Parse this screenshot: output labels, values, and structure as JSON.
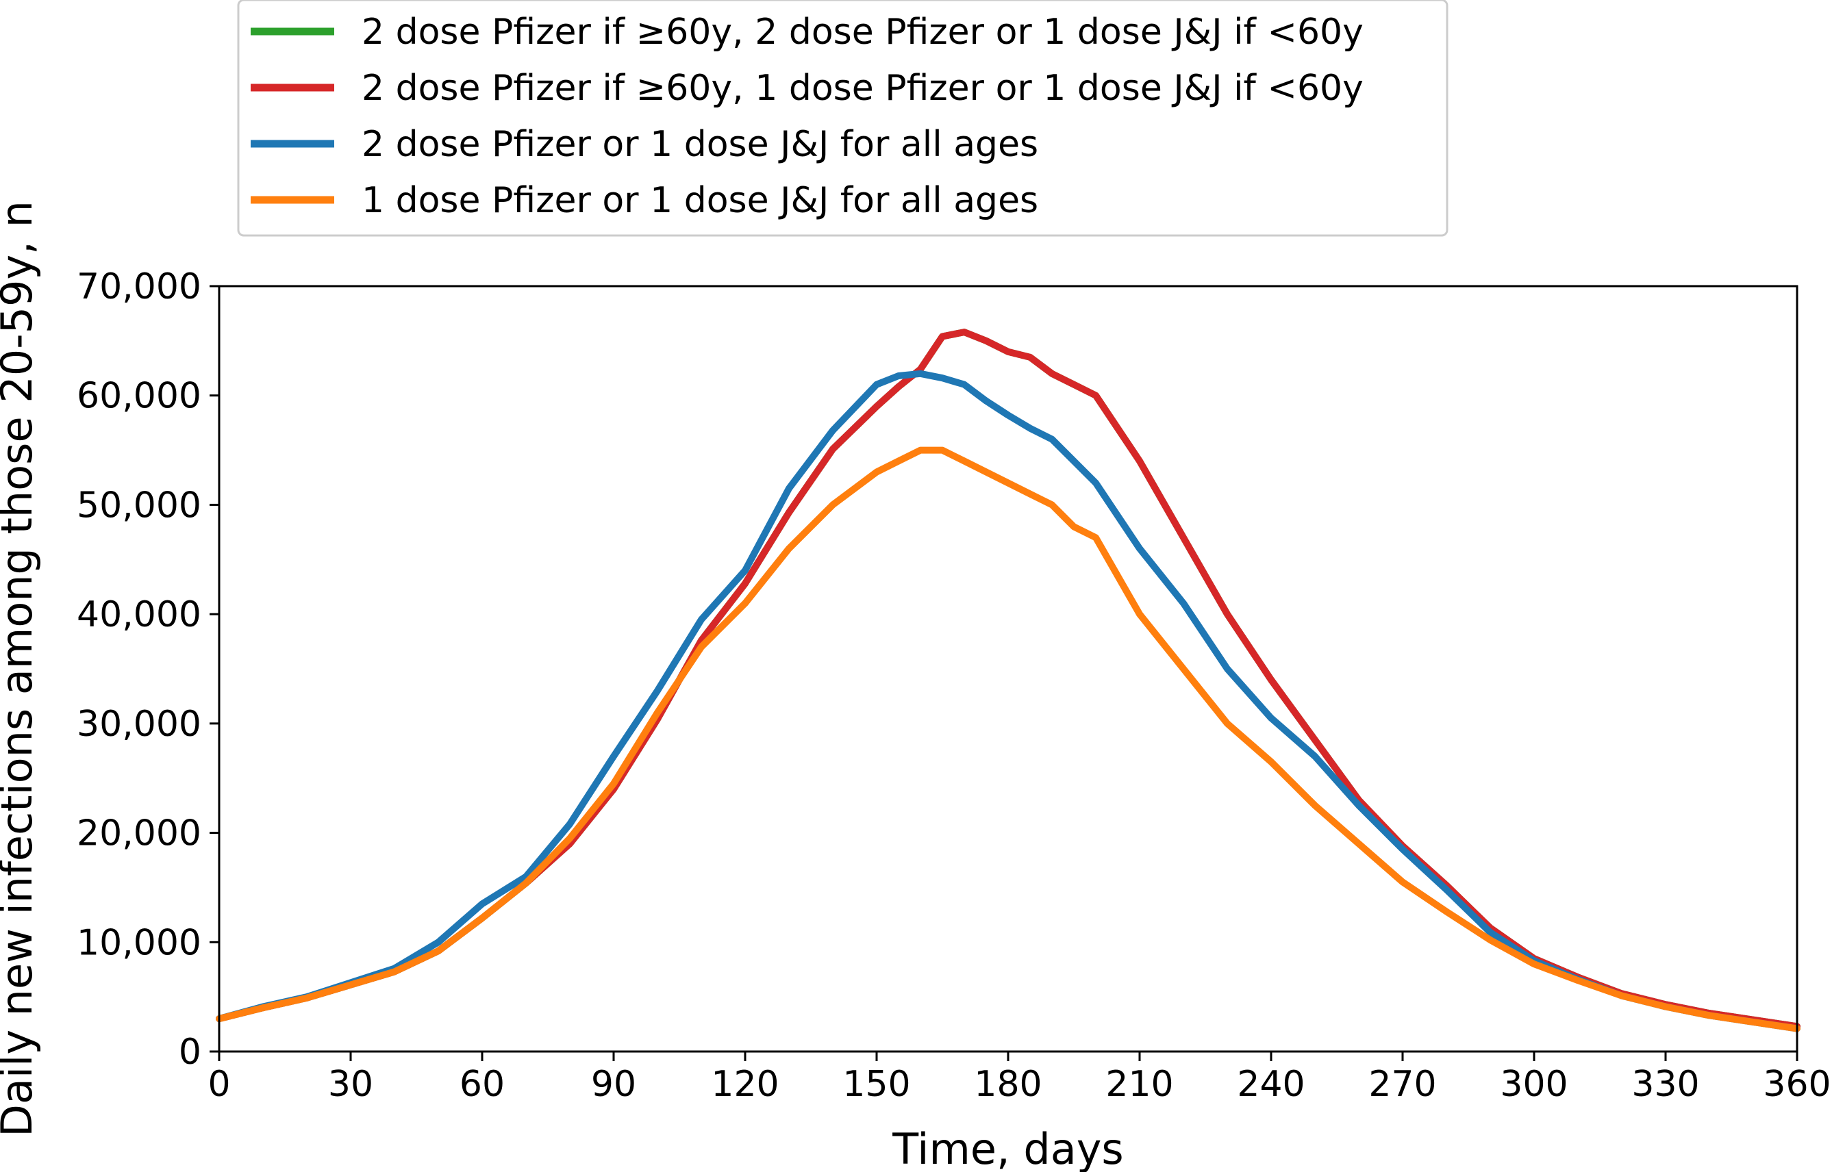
{
  "chart_data": {
    "type": "line",
    "title": "",
    "xlabel": "Time, days",
    "ylabel": "Daily new infections among those 20-59y, n",
    "xlim": [
      0,
      360
    ],
    "ylim": [
      0,
      70000
    ],
    "x_ticks": [
      0,
      30,
      60,
      90,
      120,
      150,
      180,
      210,
      240,
      270,
      300,
      330,
      360
    ],
    "x_tick_labels": [
      "0",
      "30",
      "60",
      "90",
      "120",
      "150",
      "180",
      "210",
      "240",
      "270",
      "300",
      "330",
      "360"
    ],
    "y_ticks": [
      0,
      10000,
      20000,
      30000,
      40000,
      50000,
      60000,
      70000
    ],
    "y_tick_labels": [
      "0",
      "10,000",
      "20,000",
      "30,000",
      "40,000",
      "50,000",
      "60,000",
      "70,000"
    ],
    "grid": false,
    "legend_position": "top-left, outside above plot",
    "series": [
      {
        "name": "2 dose Pfizer if ≥60y, 2 dose Pfizer or 1 dose J&J if <60y",
        "color": "#2ca02c",
        "x": [
          0,
          10,
          20,
          30,
          40,
          50,
          60,
          70,
          80,
          90,
          100,
          110,
          120,
          130,
          140,
          150,
          155,
          160,
          165,
          170,
          175,
          180,
          185,
          190,
          195,
          200,
          210,
          220,
          230,
          240,
          250,
          260,
          270,
          280,
          290,
          300,
          310,
          320,
          330,
          340,
          350,
          360
        ],
        "y": [
          3000,
          4000,
          4900,
          6100,
          7300,
          9200,
          12200,
          15400,
          19000,
          24000,
          30400,
          37600,
          42800,
          49300,
          55100,
          59000,
          60800,
          62400,
          65400,
          65800,
          65000,
          64000,
          63500,
          62000,
          61000,
          60000,
          54000,
          47000,
          40000,
          34000,
          28500,
          23000,
          18800,
          15200,
          11300,
          8500,
          6800,
          5300,
          4300,
          3500,
          2900,
          2300
        ]
      },
      {
        "name": "2 dose Pfizer if ≥60y, 1 dose Pfizer or 1 dose J&J if <60y",
        "color": "#d62728",
        "x": [
          0,
          10,
          20,
          30,
          40,
          50,
          60,
          70,
          80,
          90,
          100,
          110,
          120,
          130,
          140,
          150,
          155,
          160,
          165,
          170,
          175,
          180,
          185,
          190,
          195,
          200,
          210,
          220,
          230,
          240,
          250,
          260,
          270,
          280,
          290,
          300,
          310,
          320,
          330,
          340,
          350,
          360
        ],
        "y": [
          3000,
          4000,
          4900,
          6100,
          7300,
          9200,
          12200,
          15400,
          19000,
          24000,
          30400,
          37600,
          42800,
          49300,
          55100,
          59000,
          60800,
          62400,
          65400,
          65800,
          65000,
          64000,
          63500,
          62000,
          61000,
          60000,
          54000,
          47000,
          40000,
          34000,
          28500,
          23000,
          18800,
          15200,
          11300,
          8500,
          6800,
          5300,
          4300,
          3500,
          2900,
          2300
        ]
      },
      {
        "name": "2 dose Pfizer or 1 dose J&J for all ages",
        "color": "#1f77b4",
        "x": [
          0,
          10,
          20,
          30,
          40,
          50,
          60,
          70,
          80,
          90,
          100,
          110,
          120,
          130,
          140,
          150,
          155,
          160,
          165,
          170,
          175,
          180,
          185,
          190,
          195,
          200,
          210,
          220,
          230,
          240,
          250,
          260,
          270,
          280,
          290,
          300,
          310,
          320,
          330,
          340,
          350,
          360
        ],
        "y": [
          3000,
          4100,
          5000,
          6300,
          7600,
          10000,
          13500,
          16000,
          20800,
          27000,
          33000,
          39500,
          44000,
          51500,
          56800,
          61000,
          61800,
          62000,
          61600,
          61000,
          59500,
          58200,
          57000,
          56000,
          54000,
          52000,
          46000,
          41000,
          35000,
          30500,
          27000,
          22500,
          18500,
          14800,
          10900,
          8300,
          6600,
          5100,
          4100,
          3300,
          2700,
          2100
        ]
      },
      {
        "name": "1 dose Pfizer or 1 dose J&J for all ages",
        "color": "#ff7f0e",
        "x": [
          0,
          10,
          20,
          30,
          40,
          50,
          60,
          70,
          80,
          90,
          100,
          110,
          120,
          130,
          140,
          150,
          155,
          160,
          165,
          170,
          175,
          180,
          185,
          190,
          195,
          200,
          210,
          220,
          230,
          240,
          250,
          260,
          270,
          280,
          290,
          300,
          310,
          320,
          330,
          340,
          350,
          360
        ],
        "y": [
          3000,
          4000,
          4900,
          6100,
          7300,
          9200,
          12200,
          15400,
          19500,
          24500,
          31000,
          37000,
          41000,
          46000,
          50000,
          53000,
          54000,
          55000,
          55000,
          54000,
          53000,
          52000,
          51000,
          50000,
          48000,
          47000,
          40000,
          35000,
          30000,
          26500,
          22500,
          19000,
          15500,
          12800,
          10200,
          8000,
          6500,
          5100,
          4100,
          3300,
          2700,
          2100
        ]
      }
    ]
  }
}
